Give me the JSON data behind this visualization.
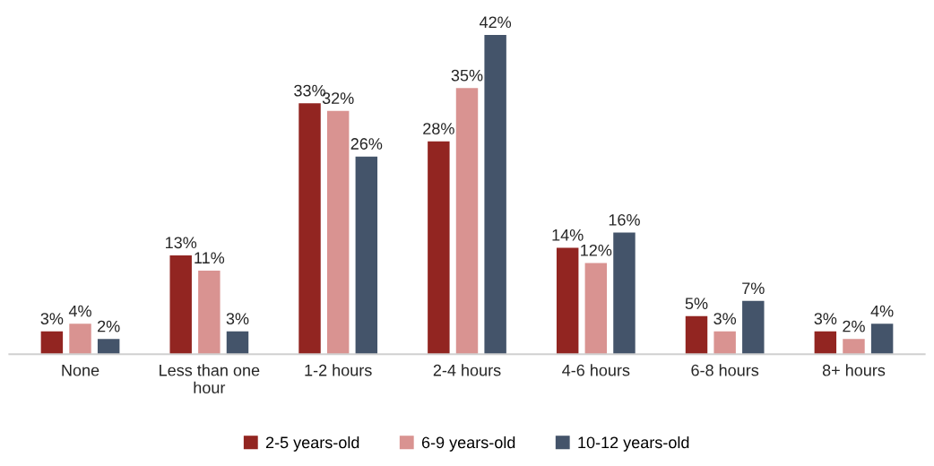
{
  "chart_data": {
    "type": "bar",
    "categories": [
      "None",
      "Less than one\nhour",
      "1-2 hours",
      "2-4 hours",
      "4-6 hours",
      "6-8 hours",
      "8+ hours"
    ],
    "series": [
      {
        "name": "2-5 years-old",
        "color": "#922521",
        "values": [
          3,
          13,
          33,
          28,
          14,
          5,
          3
        ],
        "value_labels": [
          "3%",
          "13%",
          "33%",
          "28%",
          "14%",
          "5%",
          "3%"
        ]
      },
      {
        "name": "6-9 years-old",
        "color": "#d99391",
        "values": [
          4,
          11,
          32,
          35,
          12,
          3,
          2
        ],
        "value_labels": [
          "4%",
          "11%",
          "32%",
          "35%",
          "12%",
          "3%",
          "2%"
        ]
      },
      {
        "name": "10-12 years-old",
        "color": "#44546a",
        "values": [
          2,
          3,
          26,
          42,
          16,
          7,
          4
        ],
        "value_labels": [
          "2%",
          "3%",
          "26%",
          "42%",
          "16%",
          "7%",
          "4%"
        ]
      }
    ],
    "legend": "bottom",
    "grid": false
  }
}
